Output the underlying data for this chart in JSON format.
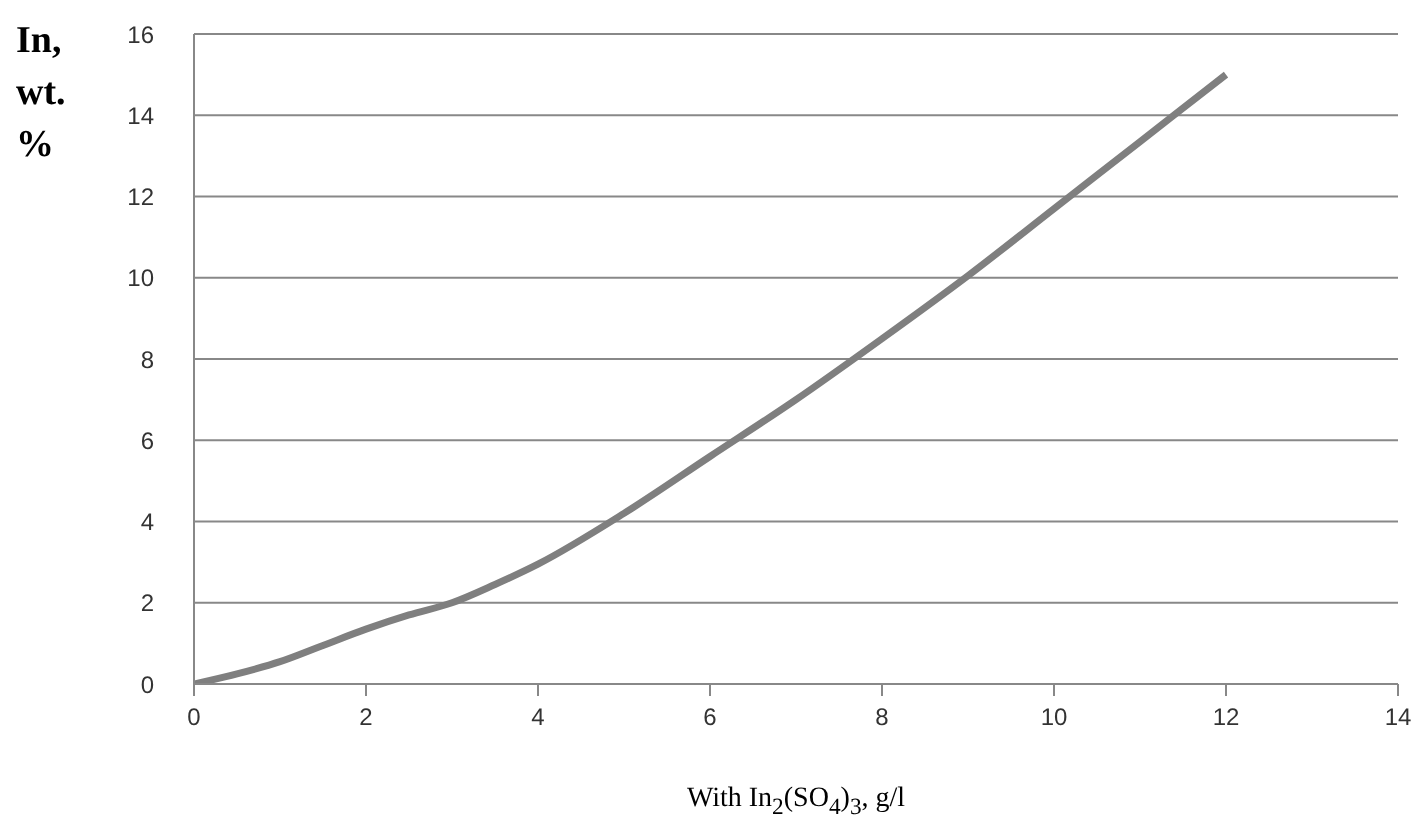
{
  "chart_data": {
    "type": "line",
    "xlabel": "With In$_{2}$(SO$_{4}$)$_{3}$, g/l",
    "ylabel": "In, wt. %",
    "x": [
      0,
      0.5,
      1,
      1.5,
      2,
      2.5,
      3,
      3.5,
      4,
      5,
      6,
      7,
      8,
      9,
      10,
      11,
      12
    ],
    "series": [
      {
        "color": "#7f7f7f",
        "values": [
          0,
          0.25,
          0.55,
          0.95,
          1.35,
          1.7,
          2.0,
          2.45,
          2.95,
          4.2,
          5.6,
          7.0,
          8.5,
          10.05,
          11.7,
          13.35,
          15.0
        ]
      }
    ],
    "xlim": [
      0,
      14
    ],
    "xticks": [
      0,
      2,
      4,
      6,
      8,
      10,
      12,
      14
    ],
    "ylim": [
      0,
      16
    ],
    "yticks": [
      0,
      2,
      4,
      6,
      8,
      10,
      12,
      14,
      16
    ],
    "grid": "y",
    "marker": "none",
    "line_style": "solid"
  }
}
